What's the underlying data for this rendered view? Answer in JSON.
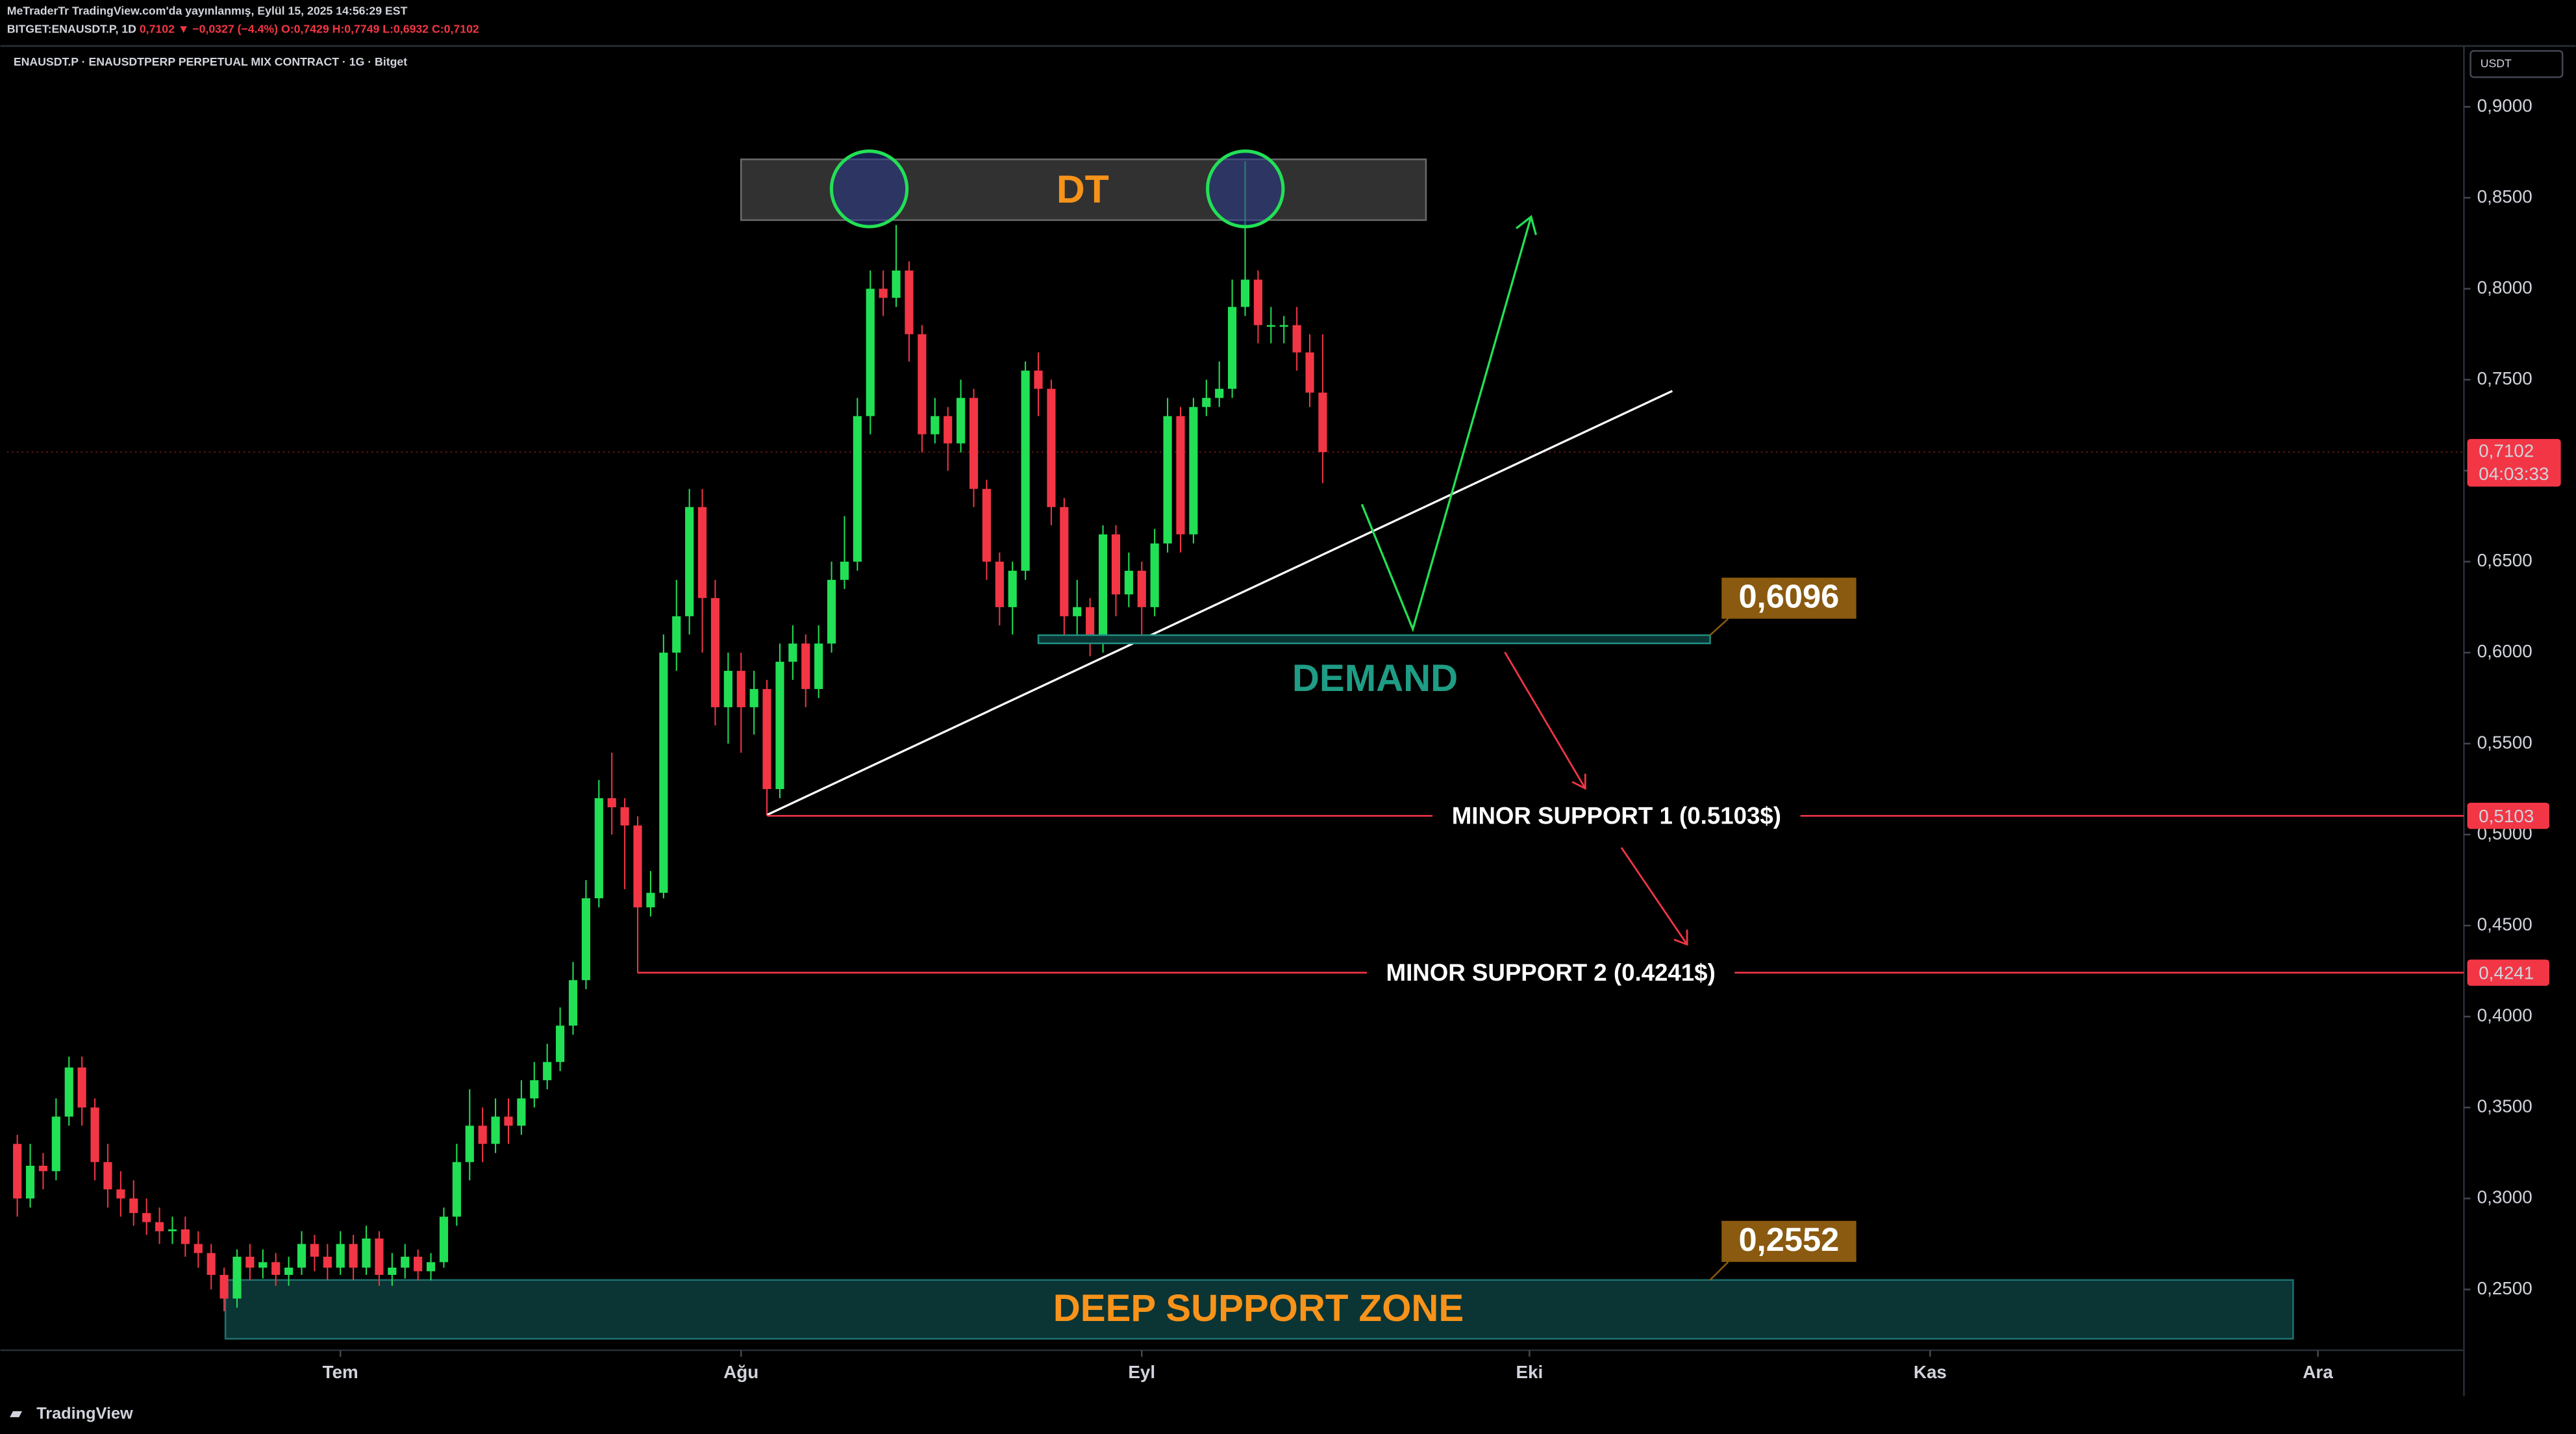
{
  "header": {
    "line1": "MeTraderTr TradingView.com'da yayınlanmış, Eylül 15, 2025 14:56:29 EST",
    "symbol": "BITGET:ENAUSDT.P, 1D",
    "change": "0,7102 ▼ −0,0327 (−4.4%)",
    "ohlc": "O:0,7429 H:0,7749 L:0,6932 C:0,7102"
  },
  "footer": {
    "brand": "TradingView"
  },
  "chart_data": {
    "type": "candlestick",
    "title": "ENAUSDT.P · ENAUSDTPERP PERPETUAL MIX CONTRACT · 1G · Bitget",
    "currency": "USDT",
    "up_color": "#22e055",
    "down_color": "#f23645",
    "grid": false,
    "open": [
      0.33,
      0.3,
      0.318,
      0.315,
      0.345,
      0.372,
      0.35,
      0.32,
      0.305,
      0.3,
      0.292,
      0.287,
      0.282,
      0.283,
      0.275,
      0.27,
      0.258,
      0.245,
      0.268,
      0.262,
      0.265,
      0.258,
      0.262,
      0.275,
      0.268,
      0.262,
      0.275,
      0.262,
      0.278,
      0.258,
      0.262,
      0.268,
      0.26,
      0.265,
      0.29,
      0.32,
      0.34,
      0.33,
      0.345,
      0.34,
      0.355,
      0.365,
      0.375,
      0.395,
      0.42,
      0.465,
      0.52,
      0.515,
      0.505,
      0.46,
      0.468,
      0.6,
      0.62,
      0.68,
      0.63,
      0.57,
      0.59,
      0.57,
      0.58,
      0.525,
      0.595,
      0.605,
      0.58,
      0.605,
      0.64,
      0.65,
      0.73,
      0.8,
      0.795,
      0.81,
      0.775,
      0.72,
      0.73,
      0.715,
      0.74,
      0.69,
      0.65,
      0.625,
      0.645,
      0.755,
      0.745,
      0.68,
      0.62,
      0.625,
      0.605,
      0.665,
      0.632,
      0.645,
      0.625,
      0.66,
      0.73,
      0.665,
      0.735,
      0.74,
      0.745,
      0.79,
      0.805,
      0.78,
      0.78,
      0.78,
      0.765,
      0.7429
    ],
    "high": [
      0.335,
      0.33,
      0.325,
      0.355,
      0.378,
      0.378,
      0.355,
      0.33,
      0.315,
      0.31,
      0.3,
      0.295,
      0.29,
      0.29,
      0.282,
      0.275,
      0.262,
      0.272,
      0.275,
      0.272,
      0.27,
      0.268,
      0.282,
      0.28,
      0.275,
      0.282,
      0.28,
      0.285,
      0.282,
      0.27,
      0.275,
      0.272,
      0.27,
      0.295,
      0.33,
      0.36,
      0.35,
      0.355,
      0.355,
      0.365,
      0.375,
      0.385,
      0.405,
      0.43,
      0.475,
      0.53,
      0.545,
      0.52,
      0.51,
      0.48,
      0.61,
      0.64,
      0.69,
      0.69,
      0.64,
      0.6,
      0.6,
      0.59,
      0.585,
      0.605,
      0.615,
      0.61,
      0.615,
      0.65,
      0.675,
      0.74,
      0.81,
      0.81,
      0.835,
      0.815,
      0.78,
      0.74,
      0.735,
      0.75,
      0.745,
      0.695,
      0.655,
      0.65,
      0.76,
      0.765,
      0.75,
      0.685,
      0.64,
      0.63,
      0.67,
      0.67,
      0.655,
      0.65,
      0.668,
      0.74,
      0.735,
      0.74,
      0.75,
      0.76,
      0.805,
      0.87,
      0.81,
      0.79,
      0.785,
      0.79,
      0.775,
      0.7749
    ],
    "low": [
      0.29,
      0.295,
      0.305,
      0.31,
      0.34,
      0.34,
      0.31,
      0.295,
      0.29,
      0.285,
      0.28,
      0.275,
      0.275,
      0.268,
      0.262,
      0.25,
      0.238,
      0.24,
      0.255,
      0.256,
      0.252,
      0.252,
      0.258,
      0.26,
      0.255,
      0.258,
      0.255,
      0.258,
      0.252,
      0.252,
      0.256,
      0.255,
      0.255,
      0.262,
      0.285,
      0.31,
      0.32,
      0.325,
      0.33,
      0.335,
      0.35,
      0.36,
      0.37,
      0.39,
      0.415,
      0.46,
      0.5,
      0.47,
      0.424,
      0.455,
      0.465,
      0.59,
      0.61,
      0.6,
      0.56,
      0.55,
      0.545,
      0.555,
      0.5103,
      0.52,
      0.585,
      0.57,
      0.575,
      0.6,
      0.635,
      0.645,
      0.72,
      0.785,
      0.79,
      0.76,
      0.71,
      0.715,
      0.7,
      0.71,
      0.68,
      0.64,
      0.615,
      0.61,
      0.64,
      0.73,
      0.67,
      0.608,
      0.61,
      0.598,
      0.6,
      0.62,
      0.625,
      0.605,
      0.62,
      0.655,
      0.655,
      0.66,
      0.73,
      0.735,
      0.74,
      0.785,
      0.77,
      0.77,
      0.77,
      0.755,
      0.735,
      0.6932
    ],
    "close": [
      0.3,
      0.318,
      0.315,
      0.345,
      0.372,
      0.35,
      0.32,
      0.305,
      0.3,
      0.292,
      0.287,
      0.282,
      0.283,
      0.275,
      0.27,
      0.258,
      0.245,
      0.268,
      0.262,
      0.265,
      0.258,
      0.262,
      0.275,
      0.268,
      0.262,
      0.275,
      0.262,
      0.278,
      0.258,
      0.262,
      0.268,
      0.26,
      0.265,
      0.29,
      0.32,
      0.34,
      0.33,
      0.345,
      0.34,
      0.355,
      0.365,
      0.375,
      0.395,
      0.42,
      0.465,
      0.52,
      0.515,
      0.505,
      0.46,
      0.468,
      0.6,
      0.62,
      0.68,
      0.63,
      0.57,
      0.59,
      0.57,
      0.58,
      0.525,
      0.595,
      0.605,
      0.58,
      0.605,
      0.64,
      0.65,
      0.73,
      0.8,
      0.795,
      0.81,
      0.775,
      0.72,
      0.73,
      0.715,
      0.74,
      0.69,
      0.65,
      0.625,
      0.645,
      0.755,
      0.745,
      0.68,
      0.62,
      0.625,
      0.605,
      0.665,
      0.632,
      0.645,
      0.625,
      0.66,
      0.73,
      0.665,
      0.735,
      0.74,
      0.745,
      0.79,
      0.805,
      0.78,
      0.78,
      0.78,
      0.765,
      0.7429,
      0.7102
    ],
    "xlim": [
      -0.8,
      189.3
    ],
    "xticks": [
      {
        "value": 25,
        "label": "Tem"
      },
      {
        "value": 56,
        "label": "Ağu"
      },
      {
        "value": 87,
        "label": "Eyl"
      },
      {
        "value": 117,
        "label": "Eki"
      },
      {
        "value": 148,
        "label": "Kas"
      },
      {
        "value": 178,
        "label": "Ara"
      }
    ],
    "ylim": [
      0.2166,
      0.9316
    ],
    "yticks": [
      {
        "value": 0.25,
        "label": "0,2500"
      },
      {
        "value": 0.3,
        "label": "0,3000"
      },
      {
        "value": 0.35,
        "label": "0,3500"
      },
      {
        "value": 0.4,
        "label": "0,4000"
      },
      {
        "value": 0.45,
        "label": "0,4500"
      },
      {
        "value": 0.5,
        "label": "0,5000"
      },
      {
        "value": 0.55,
        "label": "0,5500"
      },
      {
        "value": 0.6,
        "label": "0,6000"
      },
      {
        "value": 0.65,
        "label": "0,6500"
      },
      {
        "value": 0.7,
        "label": "0,7000"
      },
      {
        "value": 0.75,
        "label": "0,7500"
      },
      {
        "value": 0.8,
        "label": "0,8000"
      },
      {
        "value": 0.85,
        "label": "0,8500"
      },
      {
        "value": 0.9,
        "label": "0,9000"
      }
    ],
    "last_price": {
      "value": 0.7102,
      "label": "0,7102"
    },
    "countdown": "04:03:33",
    "pattern_label": "DT",
    "demand": {
      "label": "DEMAND",
      "level": {
        "value": 0.6096,
        "label": "0,6096"
      }
    },
    "supports": [
      {
        "label": "MINOR SUPPORT 1 (0.5103$)",
        "level": {
          "value": 0.5103,
          "label": "0,5103"
        }
      },
      {
        "label": "MINOR SUPPORT 2 (0.4241$)",
        "level": {
          "value": 0.4241,
          "label": "0,4241"
        }
      }
    ],
    "deep_zone": {
      "label": "DEEP SUPPORT ZONE",
      "level": {
        "value": 0.2552,
        "label": "0,2552"
      }
    }
  }
}
